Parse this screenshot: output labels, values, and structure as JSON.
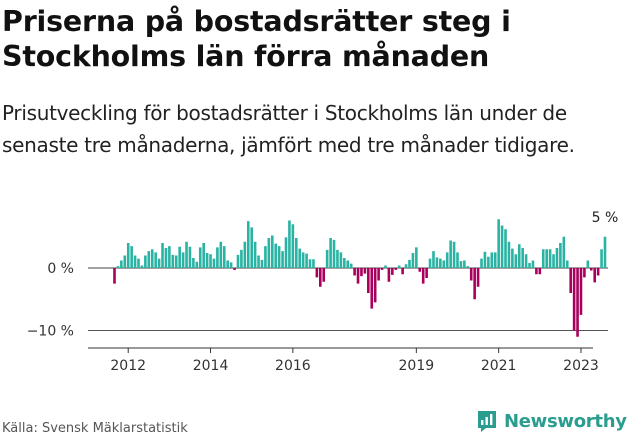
{
  "header": {
    "title": "Priserna på bostadsrätter steg i Stockholms län förra månaden",
    "subtitle": "Prisutveckling för bostadsrätter i Stockholms län under de senaste tre månaderna, jämfört med tre månader tidigare."
  },
  "footer": {
    "source": "Källa: Svensk Mäklarstatistik",
    "brand": "Newsworthy"
  },
  "colors": {
    "positive": "#2ab3a3",
    "negative": "#a8005c",
    "axis": "#333333",
    "brand": "#2a9d8f"
  },
  "chart_data": {
    "type": "bar",
    "title": "Priserna på bostadsrätter steg i Stockholms län förra månaden",
    "ylabel": "",
    "xlabel": "",
    "ylim": [
      -12,
      8
    ],
    "yticks": [
      0,
      -10
    ],
    "ytick_labels": [
      "0 %",
      "−10 %"
    ],
    "xticks": [
      2012,
      2014,
      2016,
      2019,
      2021,
      2023
    ],
    "xtick_labels": [
      "2012",
      "2014",
      "2016",
      "2019",
      "2021",
      "2023"
    ],
    "start": {
      "year": 2011,
      "month": 9
    },
    "annotation": {
      "label": "5 %",
      "value": 5
    },
    "values": [
      -2.5,
      0.3,
      1.2,
      2,
      4,
      3.5,
      2,
      1.5,
      0.4,
      2,
      2.7,
      3,
      2.5,
      1.5,
      4,
      3.2,
      3.5,
      2.1,
      2,
      3.4,
      2.5,
      4.2,
      3.4,
      1.6,
      1,
      3.3,
      4,
      2.4,
      2.2,
      1.5,
      3.3,
      4.2,
      3.5,
      1.2,
      0.9,
      -0.3,
      2.1,
      2.9,
      4.2,
      7.5,
      6.5,
      4.2,
      2,
      1.3,
      3.5,
      4.8,
      5.2,
      3.9,
      3.5,
      2.7,
      4.9,
      7.6,
      7,
      4.8,
      3.1,
      2.5,
      2.3,
      1.4,
      1.4,
      -1.5,
      -3,
      -2.2,
      2.9,
      4.8,
      4.5,
      2.9,
      2.5,
      1.6,
      1.2,
      0.7,
      -1.2,
      -2.5,
      -1.3,
      -0.9,
      -4,
      -6.5,
      -5.5,
      -2,
      -0.3,
      0.4,
      -2.2,
      -1.1,
      -0.3,
      0.4,
      -1,
      0.6,
      1.3,
      2.4,
      3.3,
      -0.6,
      -2.5,
      -1.6,
      1.5,
      2.7,
      1.7,
      1.5,
      1.2,
      2.5,
      4.4,
      4.2,
      2.5,
      1.1,
      1.2,
      0.3,
      -2,
      -5,
      -3,
      1.5,
      2.6,
      1.8,
      2.5,
      2.5,
      7.8,
      6.8,
      6.2,
      4.2,
      3.1,
      2.2,
      3.8,
      3.2,
      2.2,
      0.8,
      1.2,
      -1,
      -1,
      3,
      3,
      3,
      2.2,
      3.2,
      4,
      5,
      1.2,
      -4,
      -10,
      -11,
      -7.5,
      -1.5,
      1.2,
      -0.4,
      -2.3,
      -1.2,
      3,
      5
    ]
  }
}
